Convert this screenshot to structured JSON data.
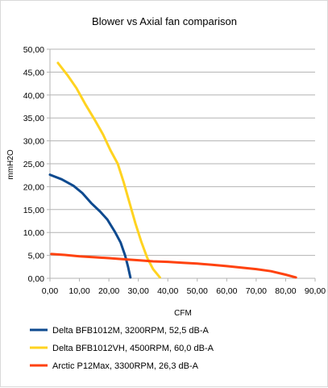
{
  "chart_data": {
    "type": "line",
    "title": "Blower vs Axial fan comparison",
    "xlabel": "CFM",
    "ylabel": "mmH2O",
    "xlim": [
      0,
      90
    ],
    "ylim": [
      0,
      50
    ],
    "x_ticks": [
      "0,00",
      "10,00",
      "20,00",
      "30,00",
      "40,00",
      "50,00",
      "60,00",
      "70,00",
      "80,00",
      "90,00"
    ],
    "y_ticks": [
      "0,00",
      "5,00",
      "10,00",
      "15,00",
      "20,00",
      "25,00",
      "30,00",
      "35,00",
      "40,00",
      "45,00",
      "50,00"
    ],
    "grid": "horizontal",
    "legend_position": "bottom",
    "series": [
      {
        "name": "Delta BFB1012M, 3200RPM, 52,5 dB-A",
        "color": "#0e4a8f",
        "points": [
          [
            0,
            22.6
          ],
          [
            4,
            21.6
          ],
          [
            8,
            20.2
          ],
          [
            11,
            18.6
          ],
          [
            14,
            16.4
          ],
          [
            17,
            14.6
          ],
          [
            19.5,
            12.8
          ],
          [
            22,
            10.2
          ],
          [
            24,
            7.8
          ],
          [
            25.5,
            5.0
          ],
          [
            26.5,
            2.5
          ],
          [
            27.3,
            0.2
          ]
        ]
      },
      {
        "name": "Delta BFB1012VH, 4500RPM, 60,0 dB-A",
        "color": "#ffd320",
        "points": [
          [
            2.7,
            47.0
          ],
          [
            6,
            44.3
          ],
          [
            9,
            41.5
          ],
          [
            12,
            38.0
          ],
          [
            15,
            34.8
          ],
          [
            18,
            31.4
          ],
          [
            20.5,
            28.0
          ],
          [
            23,
            25.0
          ],
          [
            25,
            21.0
          ],
          [
            27,
            16.5
          ],
          [
            29,
            12.0
          ],
          [
            31,
            8.0
          ],
          [
            33,
            4.5
          ],
          [
            35,
            2.0
          ],
          [
            37.3,
            0.2
          ]
        ]
      },
      {
        "name": "Arctic P12Max, 3300RPM, 26,3 dB-A",
        "color": "#ff420e",
        "points": [
          [
            0.5,
            5.3
          ],
          [
            5,
            5.1
          ],
          [
            10,
            4.8
          ],
          [
            15,
            4.6
          ],
          [
            20,
            4.4
          ],
          [
            25,
            4.15
          ],
          [
            30,
            3.95
          ],
          [
            35,
            3.7
          ],
          [
            40,
            3.6
          ],
          [
            45,
            3.4
          ],
          [
            50,
            3.2
          ],
          [
            55,
            2.95
          ],
          [
            60,
            2.65
          ],
          [
            65,
            2.35
          ],
          [
            70,
            2.0
          ],
          [
            75,
            1.55
          ],
          [
            80,
            0.8
          ],
          [
            83.5,
            0.2
          ]
        ]
      }
    ]
  }
}
